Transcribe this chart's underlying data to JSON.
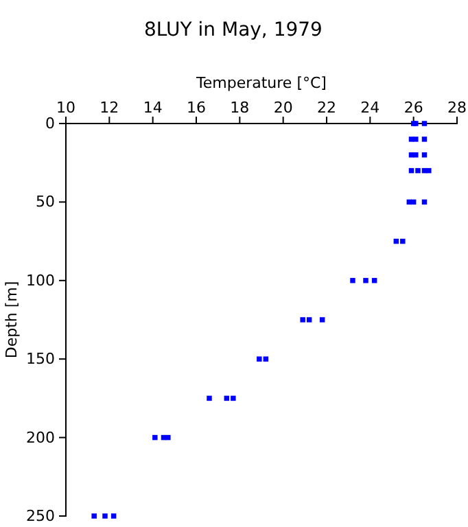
{
  "chart_data": {
    "type": "scatter",
    "title": "8LUY in May, 1979",
    "xlabel": "Temperature [°C]",
    "ylabel": "Depth [m]",
    "marker": "square",
    "grid": false,
    "xlim": [
      10,
      28
    ],
    "xticks": [
      10,
      12,
      14,
      16,
      18,
      20,
      22,
      24,
      26,
      28
    ],
    "ylim": [
      250,
      0
    ],
    "yticks": [
      0,
      50,
      100,
      150,
      200,
      250
    ],
    "series": [
      {
        "color": "#0000ff",
        "x": [
          26.0,
          26.1,
          26.5,
          25.9,
          26.1,
          26.5,
          25.9,
          26.1,
          26.5,
          25.9,
          26.2,
          26.5,
          26.7,
          25.8,
          26.0,
          26.5,
          25.2,
          25.5,
          23.2,
          23.8,
          24.2,
          20.9,
          21.2,
          21.8,
          18.9,
          19.2,
          16.6,
          17.4,
          17.7,
          14.1,
          14.5,
          14.7,
          11.3,
          11.8,
          12.2
        ],
        "values": [
          0,
          0,
          0,
          10,
          10,
          10,
          20,
          20,
          20,
          30,
          30,
          30,
          30,
          50,
          50,
          50,
          75,
          75,
          100,
          100,
          100,
          125,
          125,
          125,
          150,
          150,
          175,
          175,
          175,
          200,
          200,
          200,
          250,
          250,
          250
        ]
      }
    ]
  }
}
